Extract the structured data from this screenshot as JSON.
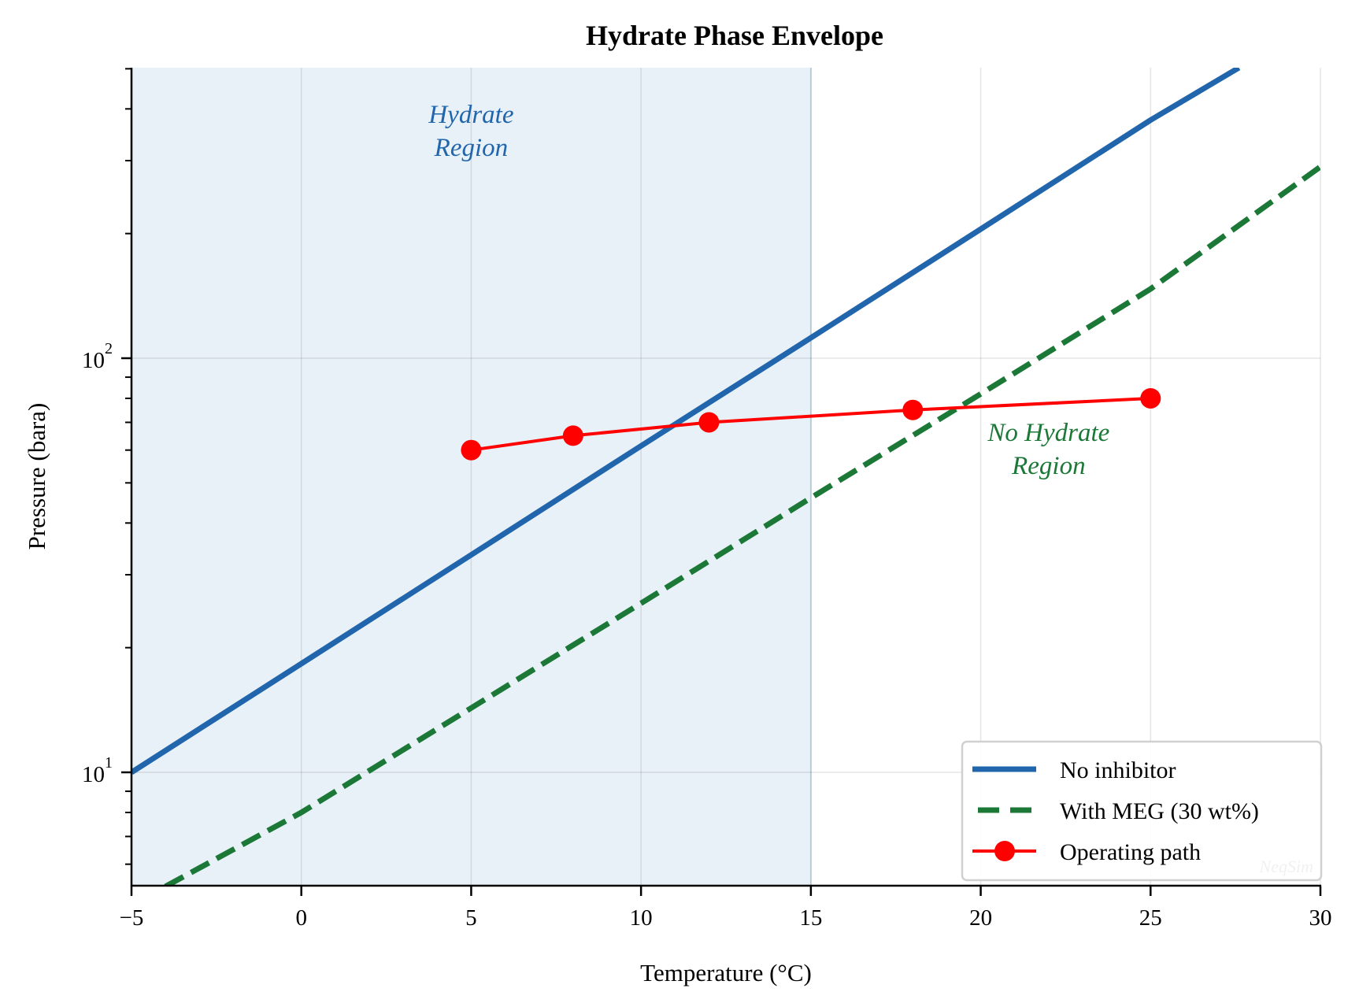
{
  "chart_data": {
    "type": "line",
    "title": "Hydrate Phase Envelope",
    "xlabel": "Temperature (°C)",
    "ylabel": "Pressure (bara)",
    "xlim": [
      -5,
      30
    ],
    "ylim": [
      5.3,
      503
    ],
    "yscale": "log",
    "grid": true,
    "x_ticks": [
      "−5",
      "0",
      "5",
      "10",
      "15",
      "20",
      "25",
      "30"
    ],
    "y_ticks": [
      {
        "base": "10",
        "exp": "1"
      },
      {
        "base": "10",
        "exp": "2"
      }
    ],
    "shaded_region": {
      "x_from": -5,
      "x_to": 15,
      "color": "#e8f1f8"
    },
    "series": [
      {
        "name": "No inhibitor",
        "style": "solid",
        "color": "#2166ac",
        "x": [
          -5,
          0,
          5,
          10,
          15,
          20,
          25,
          27.6
        ],
        "y": [
          10,
          18.3,
          33.5,
          61.4,
          112,
          205,
          376,
          503
        ]
      },
      {
        "name": "With MEG (30 wt%)",
        "style": "dashed",
        "color": "#1b7837",
        "x": [
          -4.0,
          0,
          5,
          10,
          15,
          20,
          25,
          30
        ],
        "y": [
          5.3,
          8.0,
          14.3,
          25.6,
          46,
          82,
          147,
          290
        ]
      },
      {
        "name": "Operating path",
        "style": "solid-marker",
        "color": "#ff0000",
        "x": [
          5,
          8,
          12,
          18,
          25
        ],
        "y": [
          60,
          65,
          70,
          75,
          80
        ]
      }
    ],
    "annotations": [
      {
        "text": [
          "Hydrate",
          "Region"
        ],
        "x": 5,
        "y": 370,
        "color": "#2166ac"
      },
      {
        "text": [
          "No Hydrate",
          "Region"
        ],
        "x": 22,
        "y": 57,
        "color": "#1b7837"
      }
    ],
    "legend": {
      "position": "lower right",
      "entries": [
        "No inhibitor",
        "With MEG (30 wt%)",
        "Operating path"
      ]
    },
    "watermark": "NeqSim"
  }
}
